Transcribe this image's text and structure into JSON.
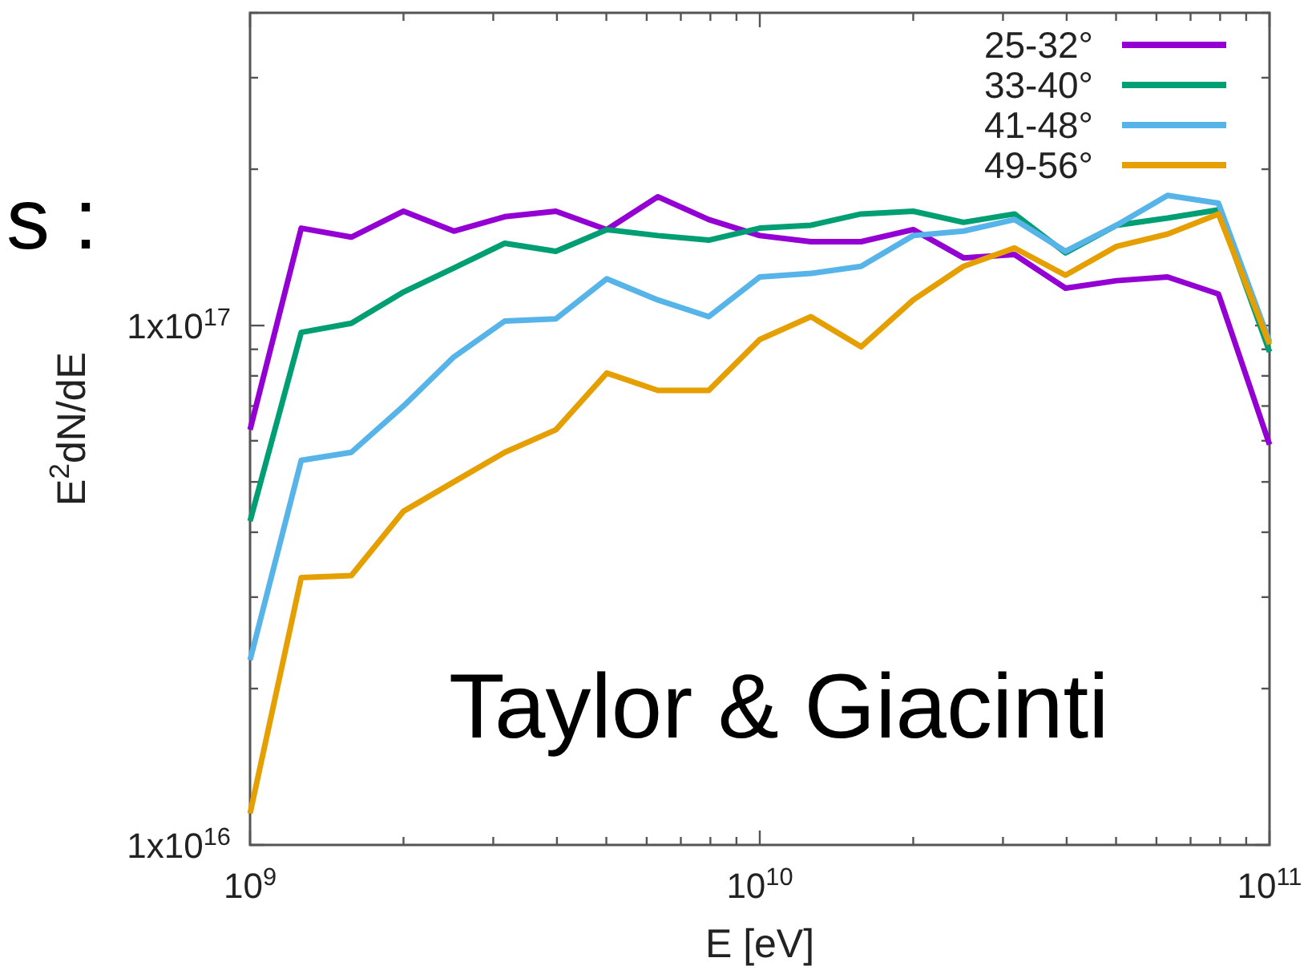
{
  "chart_data": {
    "type": "line",
    "xlabel": "E [eV]",
    "ylabel": "E$^{2}$dN/dE",
    "annotations": [
      "s :",
      "Taylor & Giacinti"
    ],
    "log": "xy",
    "legend": "top right",
    "grid": false,
    "marker": "none",
    "line_style": "solid",
    "xlim": [
      1000000000.0,
      100000000000.0
    ],
    "ylim": [
      1e+16,
      4e+17
    ],
    "xticks": [
      {
        "value": 1000000000.0,
        "label": "10$^{9}$"
      },
      {
        "value": 2000000000.0,
        "label": null
      },
      {
        "value": 3000000000.0,
        "label": null
      },
      {
        "value": 4000000000.0,
        "label": null
      },
      {
        "value": 5000000000.0,
        "label": null
      },
      {
        "value": 6000000000.0,
        "label": null
      },
      {
        "value": 7000000000.0,
        "label": null
      },
      {
        "value": 8000000000.0,
        "label": null
      },
      {
        "value": 9000000000.0,
        "label": null
      },
      {
        "value": 10000000000.0,
        "label": "10$^{10}$"
      },
      {
        "value": 20000000000.0,
        "label": null
      },
      {
        "value": 30000000000.0,
        "label": null
      },
      {
        "value": 40000000000.0,
        "label": null
      },
      {
        "value": 50000000000.0,
        "label": null
      },
      {
        "value": 60000000000.0,
        "label": null
      },
      {
        "value": 70000000000.0,
        "label": null
      },
      {
        "value": 80000000000.0,
        "label": null
      },
      {
        "value": 90000000000.0,
        "label": null
      },
      {
        "value": 100000000000.0,
        "label": "10$^{11}$"
      }
    ],
    "yticks": [
      {
        "value": 1e+16,
        "label": "1x10$^{16}$"
      },
      {
        "value": 2e+16,
        "label": null
      },
      {
        "value": 3e+16,
        "label": null
      },
      {
        "value": 4e+16,
        "label": null
      },
      {
        "value": 5e+16,
        "label": null
      },
      {
        "value": 6e+16,
        "label": null
      },
      {
        "value": 7e+16,
        "label": null
      },
      {
        "value": 8e+16,
        "label": null
      },
      {
        "value": 9e+16,
        "label": null
      },
      {
        "value": 1e+17,
        "label": "1x10$^{17}$"
      },
      {
        "value": 2e+17,
        "label": null
      },
      {
        "value": 3e+17,
        "label": null
      },
      {
        "value": 4e+17,
        "label": null
      }
    ],
    "x": [
      1000000000.0,
      1260000000.0,
      1580000000.0,
      2000000000.0,
      2510000000.0,
      3160000000.0,
      3980000000.0,
      5010000000.0,
      6310000000.0,
      7940000000.0,
      10000000000.0,
      12600000000.0,
      15800000000.0,
      20000000000.0,
      25100000000.0,
      31600000000.0,
      39800000000.0,
      50100000000.0,
      63100000000.0,
      79400000000.0,
      100000000000.0
    ],
    "series": [
      {
        "name": "25-32°",
        "color": "#9400d3",
        "values": [
          6.3e+16,
          1.54e+17,
          1.48e+17,
          1.66e+17,
          1.52e+17,
          1.62e+17,
          1.66e+17,
          1.53e+17,
          1.77e+17,
          1.6e+17,
          1.49e+17,
          1.45e+17,
          1.45e+17,
          1.53e+17,
          1.35e+17,
          1.37e+17,
          1.18e+17,
          1.22e+17,
          1.24e+17,
          1.15e+17,
          5.9e+16
        ]
      },
      {
        "name": "33-40°",
        "color": "#009e73",
        "values": [
          4.2e+16,
          9.7e+16,
          1.01e+17,
          1.16e+17,
          1.29e+17,
          1.44e+17,
          1.39e+17,
          1.53e+17,
          1.49e+17,
          1.46e+17,
          1.54e+17,
          1.56e+17,
          1.64e+17,
          1.66e+17,
          1.58e+17,
          1.64e+17,
          1.38e+17,
          1.56e+17,
          1.61e+17,
          1.67e+17,
          8.9e+16
        ]
      },
      {
        "name": "41-48°",
        "color": "#56b4e9",
        "values": [
          2.27e+16,
          5.5e+16,
          5.7e+16,
          7e+16,
          8.7e+16,
          1.02e+17,
          1.03e+17,
          1.23e+17,
          1.12e+17,
          1.04e+17,
          1.24e+17,
          1.26e+17,
          1.3e+17,
          1.49e+17,
          1.52e+17,
          1.6e+17,
          1.39e+17,
          1.56e+17,
          1.78e+17,
          1.72e+17,
          9.3e+16
        ]
      },
      {
        "name": "49-56°",
        "color": "#e69f00",
        "values": [
          1.15e+16,
          3.27e+16,
          3.3e+16,
          4.39e+16,
          5e+16,
          5.7e+16,
          6.3e+16,
          8.1e+16,
          7.5e+16,
          7.5e+16,
          9.4e+16,
          1.04e+17,
          9.1e+16,
          1.12e+17,
          1.3e+17,
          1.41e+17,
          1.25e+17,
          1.42e+17,
          1.5e+17,
          1.64e+17,
          9.2e+16
        ]
      }
    ]
  }
}
